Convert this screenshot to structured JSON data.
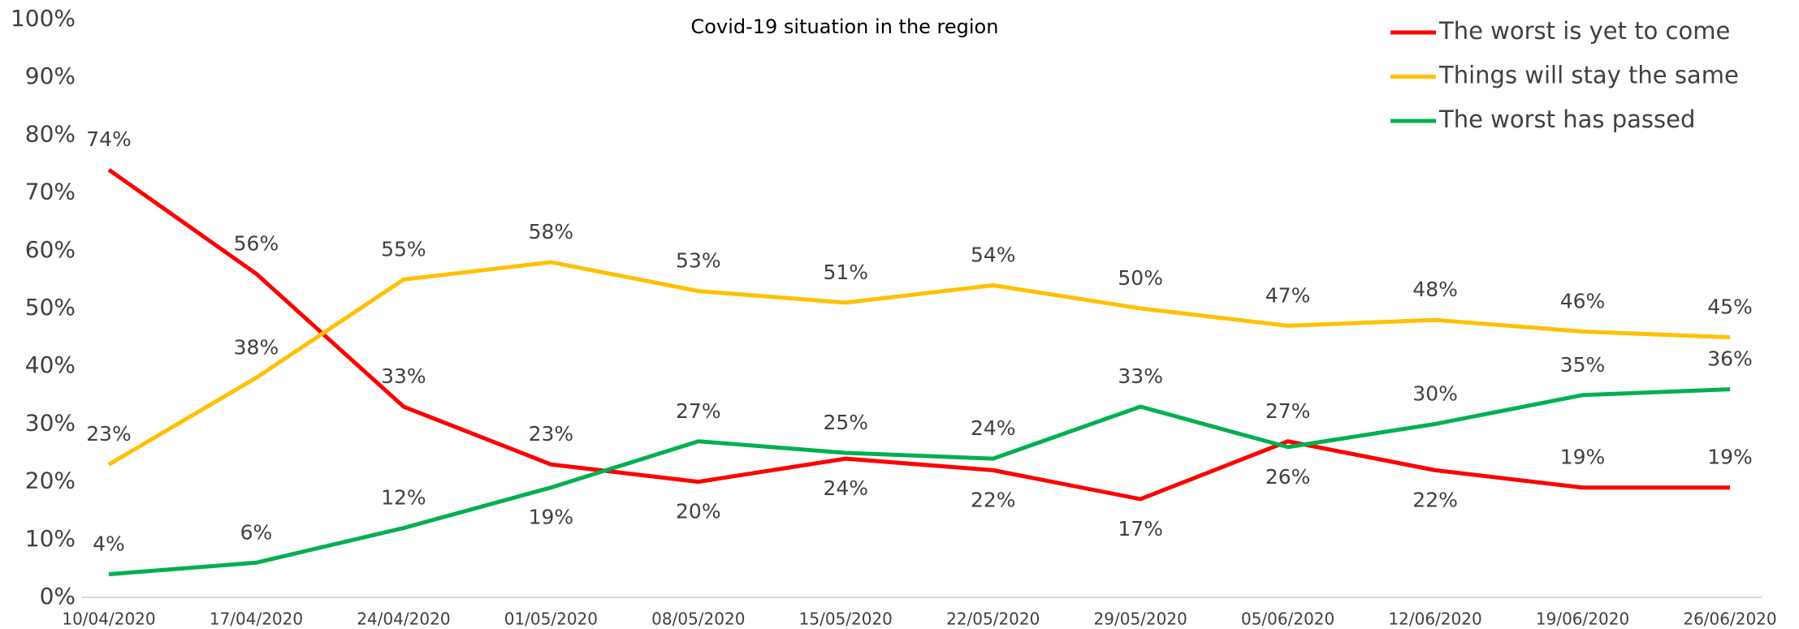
{
  "chart_data": {
    "type": "line",
    "title": "Covid-19 situation in the region",
    "categories": [
      "10/04/2020",
      "17/04/2020",
      "24/04/2020",
      "01/05/2020",
      "08/05/2020",
      "15/05/2020",
      "22/05/2020",
      "29/05/2020",
      "05/06/2020",
      "12/06/2020",
      "19/06/2020",
      "26/06/2020"
    ],
    "series": [
      {
        "name": "The worst is yet to come",
        "color": "#ff0000",
        "values": [
          74,
          56,
          33,
          23,
          20,
          24,
          22,
          17,
          27,
          22,
          19,
          19
        ],
        "value_labels": [
          "74%",
          "56%",
          "33%",
          "23%",
          "20%",
          "24%",
          "22%",
          "17%",
          "27%",
          "22%",
          "19%",
          "19%"
        ]
      },
      {
        "name": "Things will stay the same",
        "color": "#ffc000",
        "values": [
          23,
          38,
          55,
          58,
          53,
          51,
          54,
          50,
          47,
          48,
          46,
          45
        ],
        "value_labels": [
          "23%",
          "38%",
          "55%",
          "58%",
          "53%",
          "51%",
          "54%",
          "50%",
          "47%",
          "48%",
          "46%",
          "45%"
        ]
      },
      {
        "name": "The worst has passed",
        "color": "#00b050",
        "values": [
          4,
          6,
          12,
          19,
          27,
          25,
          24,
          33,
          26,
          30,
          35,
          36
        ],
        "value_labels": [
          "4%",
          "6%",
          "12%",
          "19%",
          "27%",
          "25%",
          "24%",
          "33%",
          "26%",
          "30%",
          "35%",
          "36%"
        ]
      }
    ],
    "ylim": [
      0,
      100
    ],
    "yticks": [
      {
        "value": 0,
        "label": "0%"
      },
      {
        "value": 10,
        "label": "10%"
      },
      {
        "value": 20,
        "label": "20%"
      },
      {
        "value": 30,
        "label": "30%"
      },
      {
        "value": 40,
        "label": "40%"
      },
      {
        "value": 50,
        "label": "50%"
      },
      {
        "value": 60,
        "label": "60%"
      },
      {
        "value": 70,
        "label": "70%"
      },
      {
        "value": 80,
        "label": "80%"
      },
      {
        "value": 90,
        "label": "90%"
      },
      {
        "value": 100,
        "label": "100%"
      }
    ],
    "grid": false,
    "legend": "top-right"
  }
}
